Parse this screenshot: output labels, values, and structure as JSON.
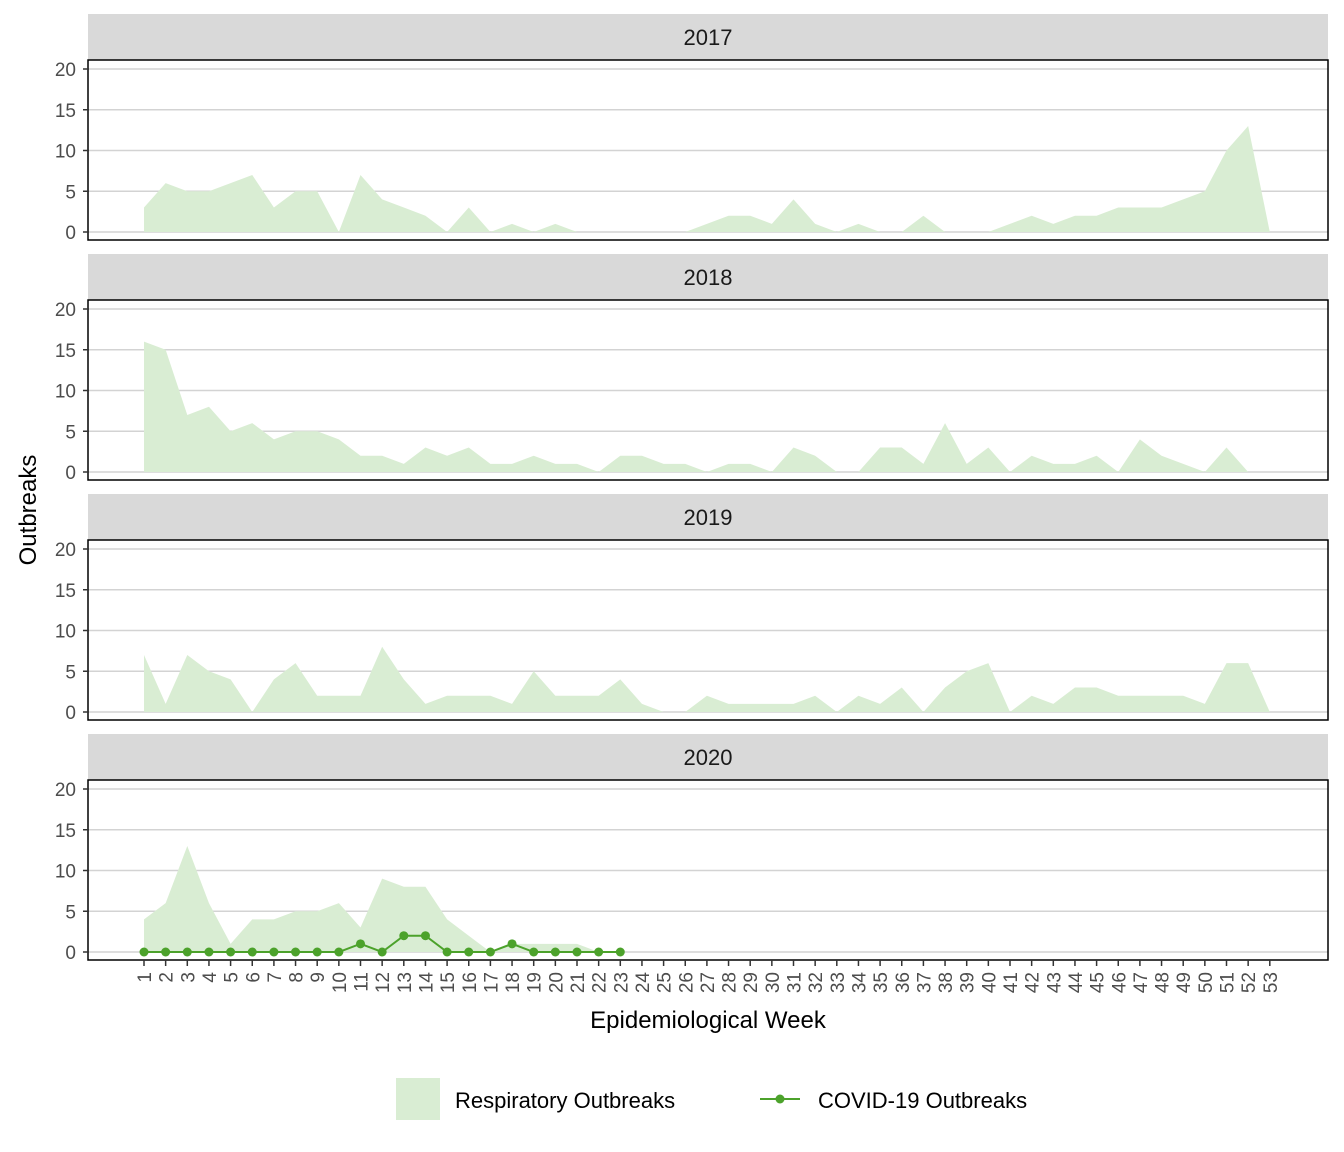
{
  "chart_data": {
    "type": "area",
    "xlabel": "Epidemiological Week",
    "ylabel": "Outbreaks",
    "ylim": [
      0,
      20
    ],
    "yticks": [
      0,
      5,
      10,
      15,
      20
    ],
    "x": [
      1,
      2,
      3,
      4,
      5,
      6,
      7,
      8,
      9,
      10,
      11,
      12,
      13,
      14,
      15,
      16,
      17,
      18,
      19,
      20,
      21,
      22,
      23,
      24,
      25,
      26,
      27,
      28,
      29,
      30,
      31,
      32,
      33,
      34,
      35,
      36,
      37,
      38,
      39,
      40,
      41,
      42,
      43,
      44,
      45,
      46,
      47,
      48,
      49,
      50,
      51,
      52,
      53
    ],
    "grid": "horizontal",
    "legend_position": "bottom",
    "colors": {
      "respiratory_fill": "#d9edd3",
      "covid_line": "#4ca22b",
      "strip_bg": "#d9d9d9",
      "grid": "#d3d3d3"
    },
    "legend": [
      {
        "label": "Respiratory Outbreaks",
        "kind": "area"
      },
      {
        "label": "COVID-19 Outbreaks",
        "kind": "line"
      }
    ],
    "panels": [
      {
        "label": "2017",
        "respiratory": [
          3,
          6,
          5,
          5,
          6,
          7,
          3,
          5,
          5,
          0,
          7,
          4,
          3,
          2,
          0,
          3,
          0,
          1,
          0,
          1,
          0,
          0,
          0,
          0,
          0,
          0,
          1,
          2,
          2,
          1,
          4,
          1,
          0,
          1,
          0,
          0,
          2,
          0,
          0,
          0,
          1,
          2,
          1,
          2,
          2,
          3,
          3,
          3,
          4,
          5,
          10,
          13,
          0
        ]
      },
      {
        "label": "2018",
        "respiratory": [
          16,
          15,
          7,
          8,
          5,
          6,
          4,
          5,
          5,
          4,
          2,
          2,
          1,
          3,
          2,
          3,
          1,
          1,
          2,
          1,
          1,
          0,
          2,
          2,
          1,
          1,
          0,
          1,
          1,
          0,
          3,
          2,
          0,
          0,
          3,
          3,
          1,
          6,
          1,
          3,
          0,
          2,
          1,
          1,
          2,
          0,
          4,
          2,
          1,
          0,
          3,
          0,
          null
        ]
      },
      {
        "label": "2019",
        "respiratory": [
          7,
          1,
          7,
          5,
          4,
          0,
          4,
          6,
          2,
          2,
          2,
          8,
          4,
          1,
          2,
          2,
          2,
          1,
          5,
          2,
          2,
          2,
          4,
          1,
          0,
          0,
          2,
          1,
          1,
          1,
          1,
          2,
          0,
          2,
          1,
          3,
          0,
          3,
          5,
          6,
          0,
          2,
          1,
          3,
          3,
          2,
          2,
          2,
          2,
          1,
          6,
          6,
          0
        ]
      },
      {
        "label": "2020",
        "respiratory": [
          4,
          6,
          13,
          6,
          1,
          4,
          4,
          5,
          5,
          6,
          3,
          9,
          8,
          8,
          4,
          2,
          0,
          1,
          1,
          1,
          1,
          0,
          0
        ],
        "covid": [
          0,
          0,
          0,
          0,
          0,
          0,
          0,
          0,
          0,
          0,
          1,
          0,
          2,
          2,
          0,
          0,
          0,
          1,
          0,
          0,
          0,
          0,
          0
        ]
      }
    ]
  }
}
